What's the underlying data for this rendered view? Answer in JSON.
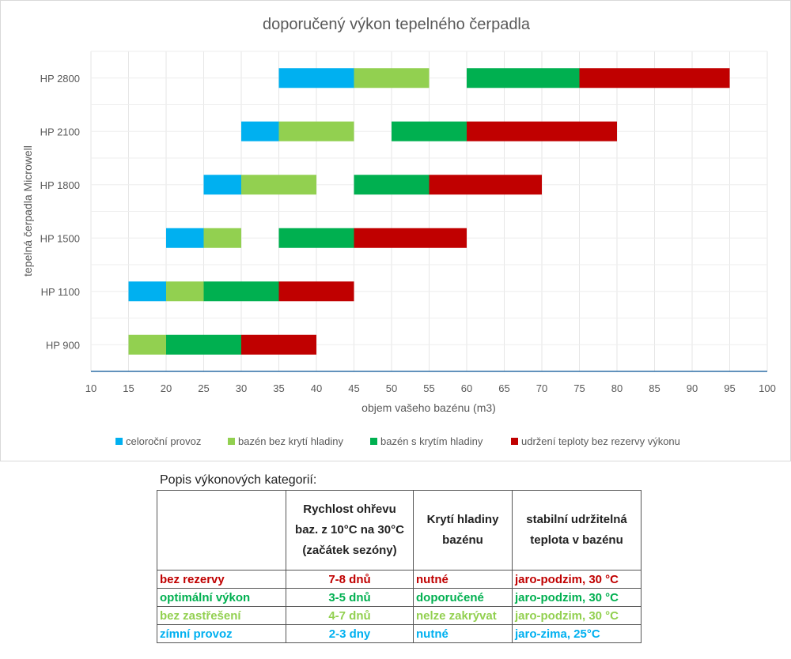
{
  "chart_data": {
    "type": "bar",
    "orientation": "horizontal-floating",
    "title": "doporučený výkon tepelného čerpadla",
    "xlabel": "objem vašeho bazénu (m3)",
    "ylabel": "tepelná čerpadla Microwell",
    "xlim": [
      10,
      100
    ],
    "xticks": [
      10,
      15,
      20,
      25,
      30,
      35,
      40,
      45,
      50,
      55,
      60,
      65,
      70,
      75,
      80,
      85,
      90,
      95,
      100
    ],
    "categories": [
      "HP 2800",
      "HP 2100",
      "HP 1800",
      "HP 1500",
      "HP 1100",
      "HP 900"
    ],
    "legend_position": "bottom",
    "series": [
      {
        "name": "celoroční provoz",
        "color": "#00b0f0",
        "ranges": [
          [
            35,
            45
          ],
          [
            30,
            35
          ],
          [
            25,
            30
          ],
          [
            20,
            25
          ],
          [
            15,
            20
          ],
          null
        ]
      },
      {
        "name": "bazén bez krytí hladiny",
        "color": "#92d050",
        "ranges": [
          [
            45,
            55
          ],
          [
            35,
            45
          ],
          [
            30,
            40
          ],
          [
            25,
            30
          ],
          [
            20,
            25
          ],
          [
            15,
            20
          ]
        ]
      },
      {
        "name": "bazén s krytím hladiny",
        "color": "#00b050",
        "ranges": [
          [
            60,
            75
          ],
          [
            50,
            60
          ],
          [
            45,
            55
          ],
          [
            35,
            45
          ],
          [
            25,
            35
          ],
          [
            20,
            30
          ]
        ]
      },
      {
        "name": "udržení teploty bez rezervy výkonu",
        "color": "#c00000",
        "ranges": [
          [
            75,
            95
          ],
          [
            60,
            80
          ],
          [
            55,
            70
          ],
          [
            45,
            60
          ],
          [
            35,
            45
          ],
          [
            30,
            40
          ]
        ]
      }
    ]
  },
  "table": {
    "title": "Popis výkonových kategorií:",
    "headers": [
      "",
      "Rychlost ohřevu baz. z 10°C na 30°C (začátek sezóny)",
      "Krytí hladiny bazénu",
      "stabilní udržitelná teplota v bazénu"
    ],
    "rows": [
      {
        "color": "#c00000",
        "cells": [
          "bez rezervy",
          "7-8 dnů",
          "nutné",
          "jaro-podzim, 30 °C"
        ]
      },
      {
        "color": "#00b050",
        "cells": [
          "optimální výkon",
          "3-5 dnů",
          "doporučené",
          "jaro-podzim, 30 °C"
        ]
      },
      {
        "color": "#92d050",
        "cells": [
          "bez zastřešení",
          "4-7 dnů",
          "nelze zakrývat",
          "jaro-podzim, 30 °C"
        ]
      },
      {
        "color": "#00b0f0",
        "cells": [
          "zímní provoz",
          "2-3 dny",
          "nutné",
          "jaro-zima, 25°C"
        ]
      }
    ]
  }
}
